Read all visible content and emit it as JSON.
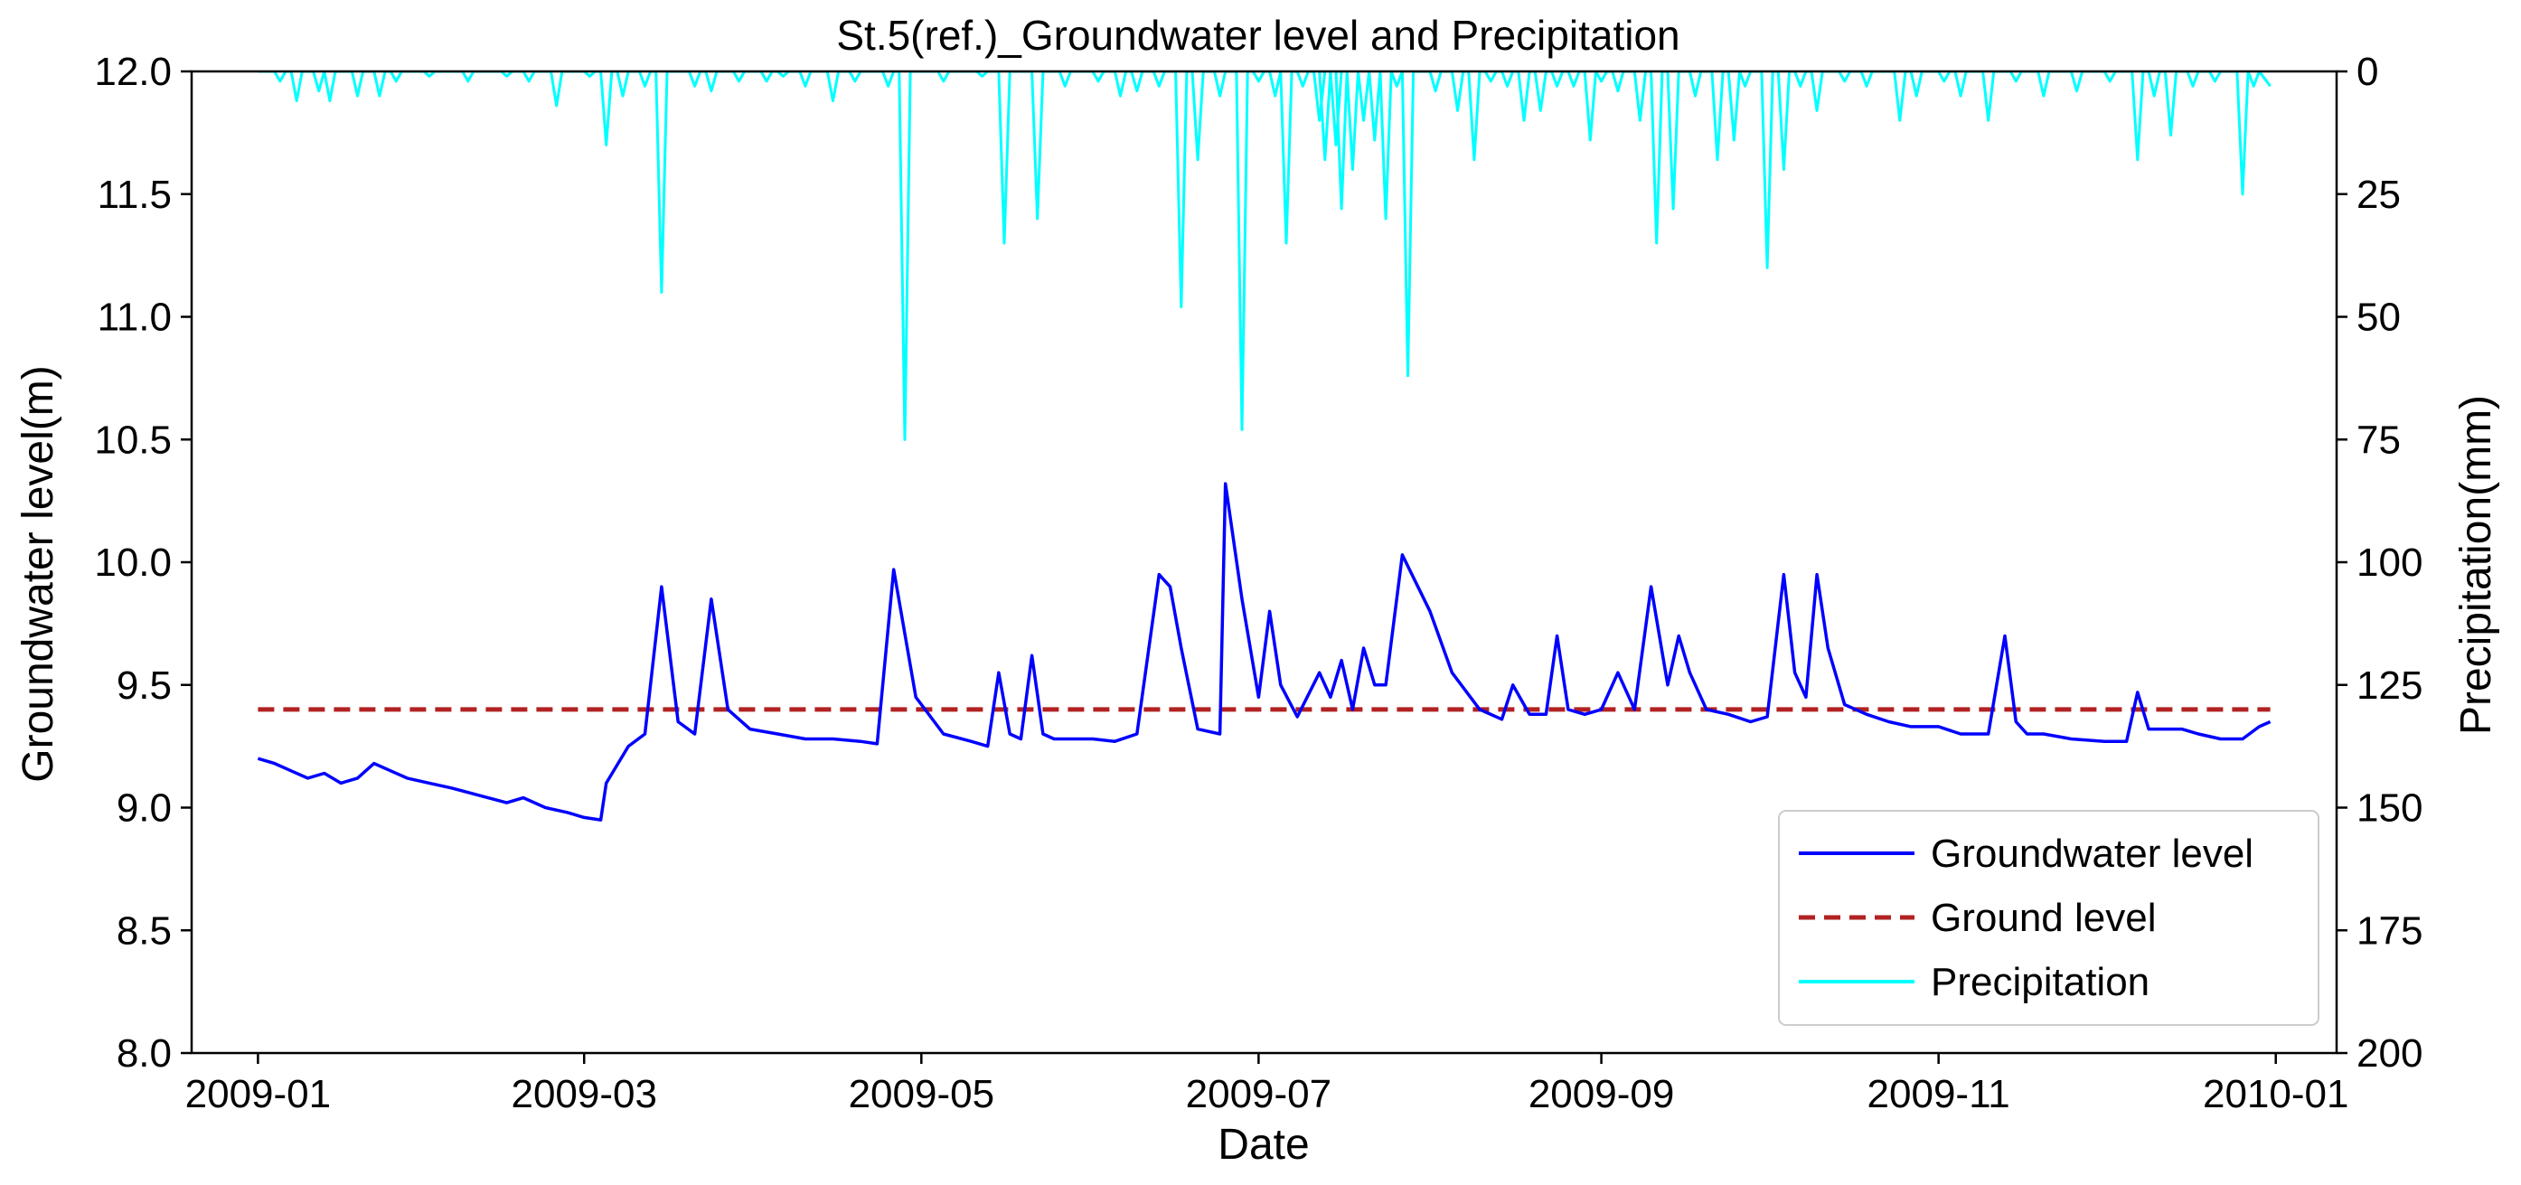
{
  "chart_data": {
    "type": "line",
    "title": "St.5(ref.)_Groundwater level and Precipitation",
    "xlabel": "Date",
    "ylabel": "Groundwater level(m)",
    "y2label": "Precipitation(mm)",
    "xlim": [
      "2008-12-20",
      "2010-01-12"
    ],
    "ylim": [
      8.0,
      12.0
    ],
    "y2lim": [
      200,
      0
    ],
    "y2_inverted": true,
    "x_ticks": [
      "2009-01-01",
      "2009-03-01",
      "2009-05-01",
      "2009-07-01",
      "2009-09-01",
      "2009-11-01",
      "2010-01-01"
    ],
    "x_tick_labels": [
      "2009-01",
      "2009-03",
      "2009-05",
      "2009-07",
      "2009-09",
      "2009-11",
      "2010-01"
    ],
    "y_ticks": [
      "8.0",
      "8.5",
      "9.0",
      "9.5",
      "10.0",
      "10.5",
      "11.0",
      "11.5",
      "12.0"
    ],
    "y2_ticks": [
      "0",
      "25",
      "50",
      "75",
      "100",
      "125",
      "150",
      "175",
      "200"
    ],
    "grid": false,
    "legend_position": "bottom-right",
    "colors": {
      "groundwater": "#0000ff",
      "ground_level": "#b22222",
      "precipitation": "#00ffff"
    },
    "series": [
      {
        "name": "Groundwater level",
        "axis": "left",
        "style": "solid",
        "x": [
          "2009-01-01",
          "2009-01-04",
          "2009-01-07",
          "2009-01-10",
          "2009-01-13",
          "2009-01-16",
          "2009-01-19",
          "2009-01-22",
          "2009-01-25",
          "2009-01-28",
          "2009-02-01",
          "2009-02-05",
          "2009-02-10",
          "2009-02-15",
          "2009-02-18",
          "2009-02-22",
          "2009-02-26",
          "2009-03-01",
          "2009-03-04",
          "2009-03-05",
          "2009-03-09",
          "2009-03-12",
          "2009-03-15",
          "2009-03-18",
          "2009-03-21",
          "2009-03-24",
          "2009-03-27",
          "2009-03-31",
          "2009-04-05",
          "2009-04-10",
          "2009-04-15",
          "2009-04-20",
          "2009-04-23",
          "2009-04-26",
          "2009-04-30",
          "2009-05-05",
          "2009-05-10",
          "2009-05-13",
          "2009-05-15",
          "2009-05-17",
          "2009-05-19",
          "2009-05-21",
          "2009-05-23",
          "2009-05-25",
          "2009-05-28",
          "2009-06-01",
          "2009-06-05",
          "2009-06-09",
          "2009-06-13",
          "2009-06-15",
          "2009-06-17",
          "2009-06-20",
          "2009-06-24",
          "2009-06-25",
          "2009-06-28",
          "2009-07-01",
          "2009-07-03",
          "2009-07-05",
          "2009-07-08",
          "2009-07-12",
          "2009-07-14",
          "2009-07-16",
          "2009-07-18",
          "2009-07-20",
          "2009-07-22",
          "2009-07-24",
          "2009-07-27",
          "2009-08-01",
          "2009-08-05",
          "2009-08-10",
          "2009-08-14",
          "2009-08-16",
          "2009-08-19",
          "2009-08-22",
          "2009-08-24",
          "2009-08-26",
          "2009-08-29",
          "2009-09-01",
          "2009-09-04",
          "2009-09-07",
          "2009-09-10",
          "2009-09-13",
          "2009-09-15",
          "2009-09-17",
          "2009-09-20",
          "2009-09-24",
          "2009-09-28",
          "2009-10-01",
          "2009-10-04",
          "2009-10-06",
          "2009-10-08",
          "2009-10-10",
          "2009-10-12",
          "2009-10-15",
          "2009-10-19",
          "2009-10-23",
          "2009-10-27",
          "2009-11-01",
          "2009-11-05",
          "2009-11-10",
          "2009-11-13",
          "2009-11-15",
          "2009-11-17",
          "2009-11-20",
          "2009-11-25",
          "2009-12-01",
          "2009-12-05",
          "2009-12-07",
          "2009-12-09",
          "2009-12-12",
          "2009-12-15",
          "2009-12-18",
          "2009-12-22",
          "2009-12-26",
          "2009-12-29",
          "2009-12-31"
        ],
        "values": [
          9.2,
          9.18,
          9.15,
          9.12,
          9.14,
          9.1,
          9.12,
          9.18,
          9.15,
          9.12,
          9.1,
          9.08,
          9.05,
          9.02,
          9.04,
          9.0,
          8.98,
          8.96,
          8.95,
          9.1,
          9.25,
          9.3,
          9.9,
          9.35,
          9.3,
          9.85,
          9.4,
          9.32,
          9.3,
          9.28,
          9.28,
          9.27,
          9.26,
          9.97,
          9.45,
          9.3,
          9.27,
          9.25,
          9.55,
          9.3,
          9.28,
          9.62,
          9.3,
          9.28,
          9.28,
          9.28,
          9.27,
          9.3,
          9.95,
          9.9,
          9.65,
          9.32,
          9.3,
          10.32,
          9.85,
          9.45,
          9.8,
          9.5,
          9.37,
          9.55,
          9.45,
          9.6,
          9.4,
          9.65,
          9.5,
          9.5,
          10.03,
          9.8,
          9.55,
          9.4,
          9.36,
          9.5,
          9.38,
          9.38,
          9.7,
          9.4,
          9.38,
          9.4,
          9.55,
          9.4,
          9.9,
          9.5,
          9.7,
          9.55,
          9.4,
          9.38,
          9.35,
          9.37,
          9.95,
          9.55,
          9.45,
          9.95,
          9.65,
          9.42,
          9.38,
          9.35,
          9.33,
          9.33,
          9.3,
          9.3,
          9.7,
          9.35,
          9.3,
          9.3,
          9.28,
          9.27,
          9.27,
          9.47,
          9.32,
          9.32,
          9.32,
          9.3,
          9.28,
          9.28,
          9.33,
          9.35
        ]
      },
      {
        "name": "Ground level",
        "axis": "left",
        "style": "dashed",
        "x": [
          "2009-01-01",
          "2009-12-31"
        ],
        "values": [
          9.4,
          9.4
        ]
      },
      {
        "name": "Precipitation",
        "axis": "right",
        "style": "solid",
        "x": [
          "2009-01-05",
          "2009-01-08",
          "2009-01-12",
          "2009-01-14",
          "2009-01-19",
          "2009-01-23",
          "2009-01-26",
          "2009-02-01",
          "2009-02-08",
          "2009-02-15",
          "2009-02-19",
          "2009-02-24",
          "2009-03-02",
          "2009-03-05",
          "2009-03-08",
          "2009-03-12",
          "2009-03-15",
          "2009-03-21",
          "2009-03-24",
          "2009-03-29",
          "2009-04-03",
          "2009-04-06",
          "2009-04-10",
          "2009-04-15",
          "2009-04-19",
          "2009-04-25",
          "2009-04-28",
          "2009-05-05",
          "2009-05-12",
          "2009-05-16",
          "2009-05-22",
          "2009-05-27",
          "2009-06-02",
          "2009-06-06",
          "2009-06-09",
          "2009-06-13",
          "2009-06-17",
          "2009-06-20",
          "2009-06-24",
          "2009-06-28",
          "2009-07-01",
          "2009-07-04",
          "2009-07-06",
          "2009-07-09",
          "2009-07-12",
          "2009-07-13",
          "2009-07-15",
          "2009-07-16",
          "2009-07-18",
          "2009-07-20",
          "2009-07-22",
          "2009-07-24",
          "2009-07-26",
          "2009-07-28",
          "2009-08-02",
          "2009-08-06",
          "2009-08-09",
          "2009-08-12",
          "2009-08-15",
          "2009-08-18",
          "2009-08-21",
          "2009-08-24",
          "2009-08-27",
          "2009-08-30",
          "2009-09-01",
          "2009-09-04",
          "2009-09-08",
          "2009-09-11",
          "2009-09-14",
          "2009-09-18",
          "2009-09-22",
          "2009-09-25",
          "2009-09-27",
          "2009-10-01",
          "2009-10-04",
          "2009-10-07",
          "2009-10-10",
          "2009-10-15",
          "2009-10-19",
          "2009-10-25",
          "2009-10-28",
          "2009-11-02",
          "2009-11-05",
          "2009-11-10",
          "2009-11-15",
          "2009-11-20",
          "2009-11-26",
          "2009-12-02",
          "2009-12-07",
          "2009-12-10",
          "2009-12-13",
          "2009-12-17",
          "2009-12-21",
          "2009-12-26",
          "2009-12-28"
        ],
        "values": [
          2,
          6,
          4,
          6,
          5,
          5,
          2,
          1,
          2,
          1,
          2,
          7,
          1,
          15,
          5,
          3,
          45,
          3,
          4,
          2,
          2,
          1,
          3,
          6,
          2,
          3,
          75,
          2,
          1,
          35,
          30,
          3,
          2,
          5,
          4,
          3,
          48,
          18,
          5,
          73,
          2,
          5,
          35,
          3,
          10,
          18,
          15,
          28,
          20,
          10,
          14,
          30,
          3,
          62,
          4,
          8,
          18,
          2,
          3,
          10,
          8,
          3,
          3,
          14,
          2,
          4,
          10,
          35,
          28,
          5,
          18,
          14,
          3,
          40,
          20,
          3,
          8,
          2,
          3,
          10,
          5,
          2,
          5,
          10,
          2,
          5,
          4,
          2,
          18,
          5,
          13,
          3,
          2,
          25,
          3
        ]
      }
    ],
    "legend": [
      {
        "label": "Groundwater level",
        "style": "solid",
        "color": "#0000ff"
      },
      {
        "label": "Ground level",
        "style": "dashed",
        "color": "#b22222"
      },
      {
        "label": "Precipitation",
        "style": "solid",
        "color": "#00ffff"
      }
    ]
  }
}
